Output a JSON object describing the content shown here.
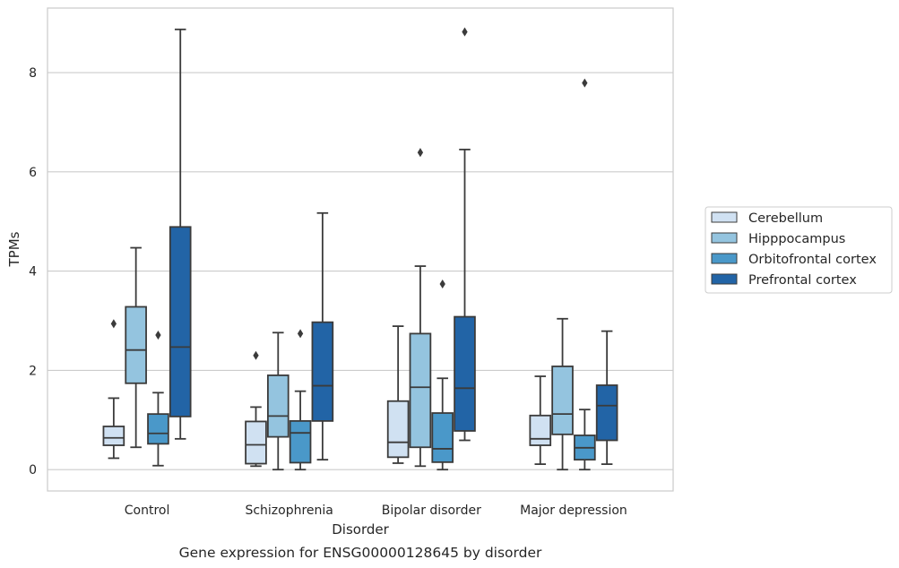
{
  "chart_data": {
    "type": "box",
    "xlabel": "Disorder",
    "ylabel": "TPMs",
    "caption": "Gene expression for ENSG00000128645 by disorder",
    "ylim": [
      -0.43,
      9.3
    ],
    "yticks": [
      0,
      2,
      4,
      6,
      8
    ],
    "grid": "horizontal",
    "legend_position": "right",
    "categories": [
      "Control",
      "Schizophrenia",
      "Bipolar disorder",
      "Major depression"
    ],
    "series": [
      {
        "name": "Cerebellum",
        "color": "#d0e1f2",
        "boxes": [
          {
            "whislo": 0.23,
            "q1": 0.49,
            "med": 0.64,
            "q3": 0.87,
            "whishi": 1.44,
            "fliers": [
              2.94
            ]
          },
          {
            "whislo": 0.07,
            "q1": 0.12,
            "med": 0.5,
            "q3": 0.97,
            "whishi": 1.26,
            "fliers": [
              2.3
            ]
          },
          {
            "whislo": 0.13,
            "q1": 0.25,
            "med": 0.55,
            "q3": 1.38,
            "whishi": 2.89,
            "fliers": []
          },
          {
            "whislo": 0.11,
            "q1": 0.49,
            "med": 0.62,
            "q3": 1.09,
            "whishi": 1.88,
            "fliers": []
          }
        ]
      },
      {
        "name": "Hipppocampus",
        "color": "#94c4df",
        "boxes": [
          {
            "whislo": 0.45,
            "q1": 1.74,
            "med": 2.41,
            "q3": 3.28,
            "whishi": 4.47,
            "fliers": []
          },
          {
            "whislo": 0.0,
            "q1": 0.66,
            "med": 1.08,
            "q3": 1.9,
            "whishi": 2.76,
            "fliers": []
          },
          {
            "whislo": 0.07,
            "q1": 0.45,
            "med": 1.66,
            "q3": 2.74,
            "whishi": 4.1,
            "fliers": [
              6.39
            ]
          },
          {
            "whislo": 0.0,
            "q1": 0.71,
            "med": 1.12,
            "q3": 2.08,
            "whishi": 3.04,
            "fliers": []
          }
        ]
      },
      {
        "name": "Orbitofrontal cortex",
        "color": "#4a98c9",
        "boxes": [
          {
            "whislo": 0.08,
            "q1": 0.52,
            "med": 0.73,
            "q3": 1.12,
            "whishi": 1.55,
            "fliers": [
              2.71
            ]
          },
          {
            "whislo": 0.0,
            "q1": 0.14,
            "med": 0.74,
            "q3": 0.98,
            "whishi": 1.58,
            "fliers": [
              2.74
            ]
          },
          {
            "whislo": 0.0,
            "q1": 0.15,
            "med": 0.42,
            "q3": 1.14,
            "whishi": 1.84,
            "fliers": [
              3.74
            ]
          },
          {
            "whislo": 0.0,
            "q1": 0.2,
            "med": 0.44,
            "q3": 0.69,
            "whishi": 1.21,
            "fliers": [
              7.79
            ]
          }
        ]
      },
      {
        "name": "Prefrontal cortex",
        "color": "#2264a6",
        "boxes": [
          {
            "whislo": 0.62,
            "q1": 1.07,
            "med": 2.47,
            "q3": 4.89,
            "whishi": 8.87,
            "fliers": []
          },
          {
            "whislo": 0.2,
            "q1": 0.98,
            "med": 1.69,
            "q3": 2.97,
            "whishi": 5.17,
            "fliers": []
          },
          {
            "whislo": 0.59,
            "q1": 0.78,
            "med": 1.64,
            "q3": 3.08,
            "whishi": 6.45,
            "fliers": [
              8.82
            ]
          },
          {
            "whislo": 0.11,
            "q1": 0.59,
            "med": 1.29,
            "q3": 1.7,
            "whishi": 2.79,
            "fliers": []
          }
        ]
      }
    ]
  }
}
